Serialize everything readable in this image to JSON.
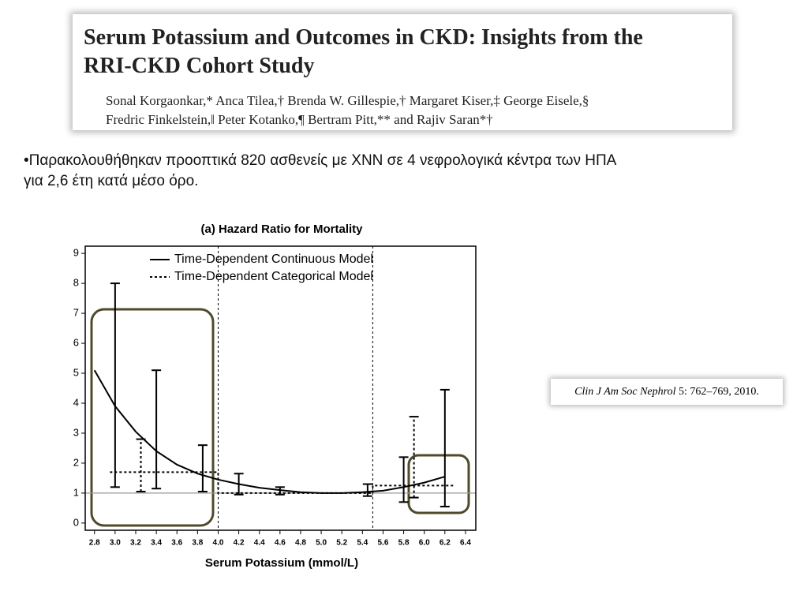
{
  "header": {
    "title_lines": [
      "Serum Potassium and Outcomes in CKD: Insights from the",
      "RRI-CKD Cohort Study"
    ],
    "author_lines": [
      "Sonal Korgaonkar,* Anca Tilea,† Brenda W. Gillespie,† Margaret Kiser,‡ George Eisele,§",
      "Fredric Finkelstein,‖ Peter Kotanko,¶ Bertram Pitt,** and Rajiv Saran*†"
    ]
  },
  "bullet_lines": [
    "•Παρακολουθήθηκαν προοπτικά 820 ασθενείς με ΧΝΝ σε 4 νεφρολογικά κέντρα των ΗΠΑ",
    "για 2,6 έτη κατά μέσο όρο."
  ],
  "citation": {
    "journal": "Clin J Am Soc Nephrol",
    "ref": "5: 762–769, 2010."
  },
  "chart_data": {
    "type": "line",
    "title": "(a) Hazard Ratio for Mortality",
    "x_label": "Serum Potassium (mmol/L)",
    "xlim": [
      2.71,
      6.5
    ],
    "ylim": [
      -0.24,
      9.24
    ],
    "xticks": [
      2.8,
      {
        "value": 3,
        "label": "3.0"
      },
      3.2,
      3.4,
      3.6,
      3.8,
      {
        "value": 4,
        "label": "4.0"
      },
      4.2,
      4.4,
      4.6,
      4.8,
      {
        "value": 5,
        "label": "5.0"
      },
      5.2,
      5.4,
      5.6,
      5.8,
      {
        "value": 6,
        "label": "6.0"
      },
      6.2,
      6.4
    ],
    "yticks": [
      0,
      1,
      2,
      3,
      4,
      5,
      6,
      7,
      8,
      9
    ],
    "series": [
      {
        "name": "Time-Dependent Continuous Model",
        "color": "#000000",
        "dash": "solid",
        "x": [
          2.8,
          3.0,
          3.2,
          3.4,
          3.6,
          3.8,
          4.0,
          4.2,
          4.4,
          4.6,
          4.8,
          5.0,
          5.2,
          5.4,
          5.6,
          5.8,
          6.0,
          6.2
        ],
        "values": [
          5.1,
          3.9,
          3.05,
          2.4,
          1.95,
          1.65,
          1.45,
          1.3,
          1.18,
          1.1,
          1.03,
          1.0,
          1.0,
          1.03,
          1.08,
          1.2,
          1.35,
          1.55
        ],
        "error_bars": {
          "x": [
            3.0,
            3.4,
            3.85,
            4.2,
            4.6,
            5.45,
            5.8,
            6.2
          ],
          "low": [
            1.2,
            1.15,
            1.05,
            0.95,
            0.95,
            0.9,
            0.7,
            0.55
          ],
          "high": [
            8.0,
            5.1,
            2.6,
            1.65,
            1.2,
            1.3,
            2.2,
            4.45
          ]
        }
      },
      {
        "name": "Time-Dependent Categorical Model",
        "color": "#000000",
        "dash": "dashed",
        "x": [
          2.95,
          4.0,
          4.0,
          5.5,
          5.5,
          6.3
        ],
        "values": [
          1.7,
          1.7,
          1.0,
          1.0,
          1.25,
          1.25
        ],
        "error_bars": {
          "x": [
            3.25,
            5.9
          ],
          "low": [
            1.05,
            0.85
          ],
          "high": [
            2.8,
            3.55
          ]
        }
      }
    ],
    "cutpoints": [
      4.0,
      5.5
    ],
    "reference_line": 1,
    "reference_color": "#999999",
    "legend": "top"
  }
}
